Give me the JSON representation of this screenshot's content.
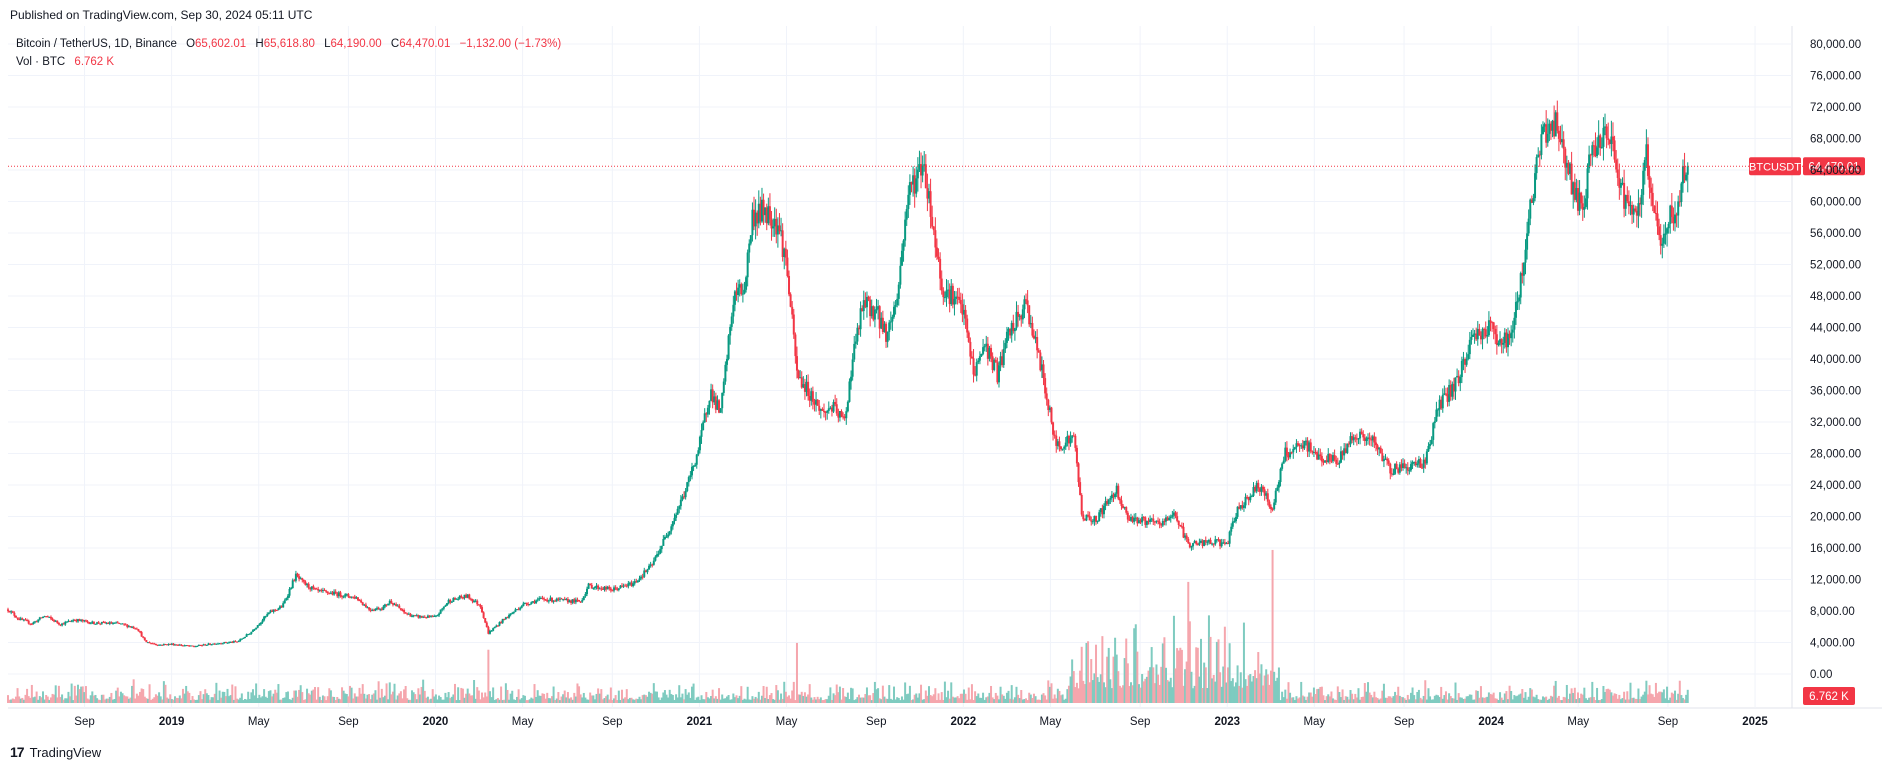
{
  "header": {
    "published": "Published on TradingView.com, Sep 30, 2024 05:11 UTC"
  },
  "legend": {
    "symbol": "Bitcoin / TetherUS, 1D, Binance",
    "o_label": "O",
    "o_value": "65,602.01",
    "h_label": "H",
    "h_value": "65,618.80",
    "l_label": "L",
    "l_value": "64,190.00",
    "c_label": "C",
    "c_value": "64,470.01",
    "change": "−1,132.00 (−1.73%)",
    "vol_label": "Vol · BTC",
    "vol_value": "6.762 K"
  },
  "footer": {
    "brand": "TradingView",
    "logo_glyph": "17"
  },
  "colors": {
    "up": "#089981",
    "down": "#f23645",
    "vol_up": "#7fcbc0",
    "vol_down": "#f5a6ad",
    "grid": "#f0f3fa",
    "price_line": "#f23645"
  },
  "chart_data": {
    "type": "candlestick",
    "title": "Bitcoin / TetherUS, 1D, Binance",
    "ylim": [
      0,
      81200
    ],
    "y_ticks": [
      0,
      4000,
      8000,
      12000,
      16000,
      20000,
      24000,
      28000,
      32000,
      36000,
      40000,
      44000,
      48000,
      52000,
      56000,
      60000,
      64000,
      68000,
      72000,
      76000,
      80000
    ],
    "y_tick_labels": [
      "0.00",
      "4,000.00",
      "8,000.00",
      "12,000.00",
      "16,000.00",
      "20,000.00",
      "24,000.00",
      "28,000.00",
      "32,000.00",
      "36,000.00",
      "40,000.00",
      "44,000.00",
      "48,000.00",
      "52,000.00",
      "56,000.00",
      "60,000.00",
      "64,000.00",
      "68,000.00",
      "72,000.00",
      "76,000.00",
      "80,000.00"
    ],
    "x_ticks": [
      {
        "label": "Sep",
        "t": 2018.67,
        "year": false
      },
      {
        "label": "2019",
        "t": 2019.0,
        "year": true
      },
      {
        "label": "May",
        "t": 2019.33,
        "year": false
      },
      {
        "label": "Sep",
        "t": 2019.67,
        "year": false
      },
      {
        "label": "2020",
        "t": 2020.0,
        "year": true
      },
      {
        "label": "May",
        "t": 2020.33,
        "year": false
      },
      {
        "label": "Sep",
        "t": 2020.67,
        "year": false
      },
      {
        "label": "2021",
        "t": 2021.0,
        "year": true
      },
      {
        "label": "May",
        "t": 2021.33,
        "year": false
      },
      {
        "label": "Sep",
        "t": 2021.67,
        "year": false
      },
      {
        "label": "2022",
        "t": 2022.0,
        "year": true
      },
      {
        "label": "May",
        "t": 2022.33,
        "year": false
      },
      {
        "label": "Sep",
        "t": 2022.67,
        "year": false
      },
      {
        "label": "2023",
        "t": 2023.0,
        "year": true
      },
      {
        "label": "May",
        "t": 2023.33,
        "year": false
      },
      {
        "label": "Sep",
        "t": 2023.67,
        "year": false
      },
      {
        "label": "2024",
        "t": 2024.0,
        "year": true
      },
      {
        "label": "May",
        "t": 2024.33,
        "year": false
      },
      {
        "label": "Sep",
        "t": 2024.67,
        "year": false
      },
      {
        "label": "2025",
        "t": 2025.0,
        "year": true
      }
    ],
    "x_range": [
      2018.38,
      2025.14
    ],
    "last_price": 64470.01,
    "last_price_label": "64,470.01",
    "symbol_badge": "BTCUSDT",
    "volume_badge": "6.762 K",
    "volume_max": 16000,
    "price_path": [
      [
        2018.38,
        8200
      ],
      [
        2018.42,
        7000
      ],
      [
        2018.47,
        6400
      ],
      [
        2018.52,
        7400
      ],
      [
        2018.58,
        6300
      ],
      [
        2018.63,
        6900
      ],
      [
        2018.7,
        6500
      ],
      [
        2018.8,
        6400
      ],
      [
        2018.87,
        5800
      ],
      [
        2018.9,
        4100
      ],
      [
        2018.95,
        3700
      ],
      [
        2019.0,
        3800
      ],
      [
        2019.08,
        3500
      ],
      [
        2019.17,
        3900
      ],
      [
        2019.25,
        4100
      ],
      [
        2019.3,
        5300
      ],
      [
        2019.37,
        7800
      ],
      [
        2019.42,
        8600
      ],
      [
        2019.47,
        12500
      ],
      [
        2019.5,
        11500
      ],
      [
        2019.55,
        10500
      ],
      [
        2019.62,
        10200
      ],
      [
        2019.7,
        9700
      ],
      [
        2019.75,
        8200
      ],
      [
        2019.8,
        8400
      ],
      [
        2019.83,
        9300
      ],
      [
        2019.88,
        7800
      ],
      [
        2019.92,
        7300
      ],
      [
        2020.0,
        7200
      ],
      [
        2020.05,
        9300
      ],
      [
        2020.12,
        9900
      ],
      [
        2020.17,
        8700
      ],
      [
        2020.2,
        5200
      ],
      [
        2020.25,
        6700
      ],
      [
        2020.33,
        8800
      ],
      [
        2020.4,
        9500
      ],
      [
        2020.5,
        9300
      ],
      [
        2020.55,
        9200
      ],
      [
        2020.58,
        11200
      ],
      [
        2020.67,
        10700
      ],
      [
        2020.75,
        11500
      ],
      [
        2020.82,
        13800
      ],
      [
        2020.88,
        18000
      ],
      [
        2020.95,
        23500
      ],
      [
        2021.0,
        29000
      ],
      [
        2021.04,
        36000
      ],
      [
        2021.08,
        33000
      ],
      [
        2021.13,
        48000
      ],
      [
        2021.17,
        49000
      ],
      [
        2021.2,
        58000
      ],
      [
        2021.25,
        59000
      ],
      [
        2021.3,
        57000
      ],
      [
        2021.33,
        52000
      ],
      [
        2021.37,
        38000
      ],
      [
        2021.42,
        35500
      ],
      [
        2021.47,
        33000
      ],
      [
        2021.5,
        34000
      ],
      [
        2021.55,
        32000
      ],
      [
        2021.58,
        40000
      ],
      [
        2021.62,
        47000
      ],
      [
        2021.67,
        46000
      ],
      [
        2021.71,
        43000
      ],
      [
        2021.75,
        48000
      ],
      [
        2021.79,
        61000
      ],
      [
        2021.85,
        65000
      ],
      [
        2021.88,
        58000
      ],
      [
        2021.92,
        49000
      ],
      [
        2021.96,
        48000
      ],
      [
        2022.0,
        46000
      ],
      [
        2022.04,
        38000
      ],
      [
        2022.08,
        42000
      ],
      [
        2022.13,
        38000
      ],
      [
        2022.17,
        43000
      ],
      [
        2022.24,
        47000
      ],
      [
        2022.3,
        38000
      ],
      [
        2022.35,
        29000
      ],
      [
        2022.42,
        30000
      ],
      [
        2022.45,
        20000
      ],
      [
        2022.5,
        19500
      ],
      [
        2022.58,
        23500
      ],
      [
        2022.62,
        20000
      ],
      [
        2022.67,
        19500
      ],
      [
        2022.75,
        19000
      ],
      [
        2022.8,
        20500
      ],
      [
        2022.85,
        16500
      ],
      [
        2022.95,
        16700
      ],
      [
        2023.0,
        16600
      ],
      [
        2023.04,
        21000
      ],
      [
        2023.12,
        24000
      ],
      [
        2023.17,
        21000
      ],
      [
        2023.22,
        28000
      ],
      [
        2023.3,
        29000
      ],
      [
        2023.35,
        27500
      ],
      [
        2023.42,
        27000
      ],
      [
        2023.48,
        30500
      ],
      [
        2023.55,
        29500
      ],
      [
        2023.62,
        26000
      ],
      [
        2023.7,
        26500
      ],
      [
        2023.75,
        27000
      ],
      [
        2023.8,
        34000
      ],
      [
        2023.87,
        37000
      ],
      [
        2023.93,
        43000
      ],
      [
        2024.0,
        44000
      ],
      [
        2024.04,
        42000
      ],
      [
        2024.08,
        43000
      ],
      [
        2024.12,
        52000
      ],
      [
        2024.16,
        62000
      ],
      [
        2024.2,
        69000
      ],
      [
        2024.25,
        70000
      ],
      [
        2024.3,
        63000
      ],
      [
        2024.35,
        58000
      ],
      [
        2024.38,
        67000
      ],
      [
        2024.45,
        68000
      ],
      [
        2024.5,
        61000
      ],
      [
        2024.55,
        57000
      ],
      [
        2024.59,
        66000
      ],
      [
        2024.62,
        58000
      ],
      [
        2024.65,
        54000
      ],
      [
        2024.68,
        59000
      ],
      [
        2024.7,
        57000
      ],
      [
        2024.72,
        63000
      ],
      [
        2024.745,
        64470
      ]
    ],
    "volume_spikes": [
      {
        "t": 2020.2,
        "v": 5500
      },
      {
        "t": 2021.37,
        "v": 6200
      },
      {
        "t": 2022.45,
        "v": 5800
      },
      {
        "t": 2022.8,
        "v": 9000
      },
      {
        "t": 2022.85,
        "v": 12500
      },
      {
        "t": 2023.17,
        "v": 15800
      },
      {
        "t": 2024.59,
        "v": 2300
      }
    ],
    "volume_high_period": [
      2022.4,
      2023.2
    ]
  }
}
